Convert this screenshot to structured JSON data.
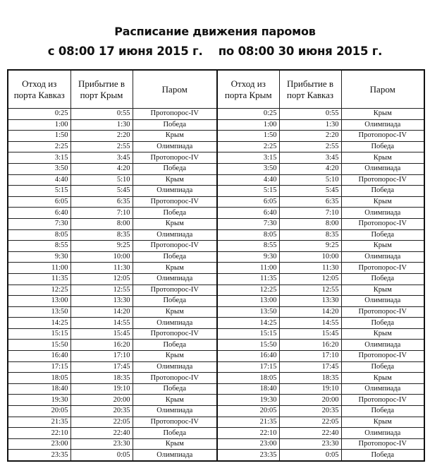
{
  "title": "Расписание движения паромов",
  "subtitle": "с 08:00 17 июня 2015 г.    по 08:00 30 июня 2015 г.",
  "headers": [
    "Отход из порта Кавказ",
    "Прибытие в порт Крым",
    "Паром",
    "Отход из порта Крым",
    "Прибытие в порт Кавказ",
    "Паром"
  ],
  "rows": [
    [
      "0:25",
      "0:55",
      "Протопорос-IV",
      "0:25",
      "0:55",
      "Крым"
    ],
    [
      "1:00",
      "1:30",
      "Победа",
      "1:00",
      "1:30",
      "Олимпиада"
    ],
    [
      "1:50",
      "2:20",
      "Крым",
      "1:50",
      "2:20",
      "Протопорос-IV"
    ],
    [
      "2:25",
      "2:55",
      "Олимпиада",
      "2:25",
      "2:55",
      "Победа"
    ],
    [
      "3:15",
      "3:45",
      "Протопорос-IV",
      "3:15",
      "3:45",
      "Крым"
    ],
    [
      "3:50",
      "4:20",
      "Победа",
      "3:50",
      "4:20",
      "Олимпиада"
    ],
    [
      "4:40",
      "5:10",
      "Крым",
      "4:40",
      "5:10",
      "Протопорос-IV"
    ],
    [
      "5:15",
      "5:45",
      "Олимпиада",
      "5:15",
      "5:45",
      "Победа"
    ],
    [
      "6:05",
      "6:35",
      "Протопорос-IV",
      "6:05",
      "6:35",
      "Крым"
    ],
    [
      "6:40",
      "7:10",
      "Победа",
      "6:40",
      "7:10",
      "Олимпиада"
    ],
    [
      "7:30",
      "8:00",
      "Крым",
      "7:30",
      "8:00",
      "Протопорос-IV"
    ],
    [
      "8:05",
      "8:35",
      "Олимпиада",
      "8:05",
      "8:35",
      "Победа"
    ],
    [
      "8:55",
      "9:25",
      "Протопорос-IV",
      "8:55",
      "9:25",
      "Крым"
    ],
    [
      "9:30",
      "10:00",
      "Победа",
      "9:30",
      "10:00",
      "Олимпиада"
    ],
    [
      "11:00",
      "11:30",
      "Крым",
      "11:00",
      "11:30",
      "Протопорос-IV"
    ],
    [
      "11:35",
      "12:05",
      "Олимпиада",
      "11:35",
      "12:05",
      "Победа"
    ],
    [
      "12:25",
      "12:55",
      "Протопорос-IV",
      "12:25",
      "12:55",
      "Крым"
    ],
    [
      "13:00",
      "13:30",
      "Победа",
      "13:00",
      "13:30",
      "Олимпиада"
    ],
    [
      "13:50",
      "14:20",
      "Крым",
      "13:50",
      "14:20",
      "Протопорос-IV"
    ],
    [
      "14:25",
      "14:55",
      "Олимпиада",
      "14:25",
      "14:55",
      "Победа"
    ],
    [
      "15:15",
      "15:45",
      "Протопорос-IV",
      "15:15",
      "15:45",
      "Крым"
    ],
    [
      "15:50",
      "16:20",
      "Победа",
      "15:50",
      "16:20",
      "Олимпиада"
    ],
    [
      "16:40",
      "17:10",
      "Крым",
      "16:40",
      "17:10",
      "Протопорос-IV"
    ],
    [
      "17:15",
      "17:45",
      "Олимпиада",
      "17:15",
      "17:45",
      "Победа"
    ],
    [
      "18:05",
      "18:35",
      "Протопорос-IV",
      "18:05",
      "18:35",
      "Крым"
    ],
    [
      "18:40",
      "19:10",
      "Победа",
      "18:40",
      "19:10",
      "Олимпиада"
    ],
    [
      "19:30",
      "20:00",
      "Крым",
      "19:30",
      "20:00",
      "Протопорос-IV"
    ],
    [
      "20:05",
      "20:35",
      "Олимпиада",
      "20:05",
      "20:35",
      "Победа"
    ],
    [
      "21:35",
      "22:05",
      "Протопорос-IV",
      "21:35",
      "22:05",
      "Крым"
    ],
    [
      "22:10",
      "22:40",
      "Победа",
      "22:10",
      "22:40",
      "Олимпиада"
    ],
    [
      "23:00",
      "23:30",
      "Крым",
      "23:00",
      "23:30",
      "Протопорос-IV"
    ],
    [
      "23:35",
      "0:05",
      "Олимпиада",
      "23:35",
      "0:05",
      "Победа"
    ]
  ]
}
